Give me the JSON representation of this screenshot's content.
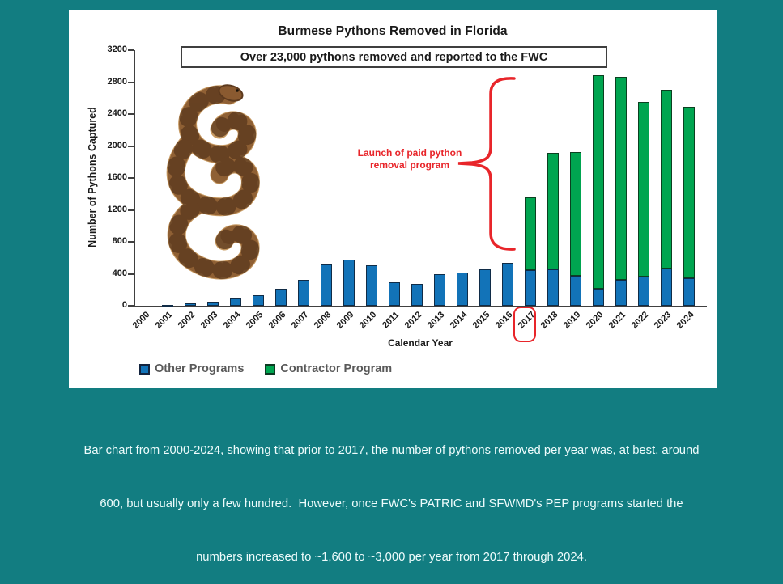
{
  "page": {
    "background_color": "#127d81"
  },
  "card": {
    "title": "Burmese Pythons Removed in Florida",
    "banner": "Over 23,000 pythons removed and reported to the FWC",
    "annotation": {
      "line1": "Launch of paid python",
      "line2": "removal program",
      "color": "#e8252a"
    },
    "highlighted_year": "2017"
  },
  "chart_data": {
    "type": "bar",
    "stacked": true,
    "title": "Burmese Pythons Removed in Florida",
    "xlabel": "Calendar Year",
    "ylabel": "Number of Pythons Captured",
    "ylim": [
      0,
      3200
    ],
    "yticks": [
      0,
      400,
      800,
      1200,
      1600,
      2000,
      2400,
      2800,
      3200
    ],
    "grid": false,
    "legend_position": "bottom",
    "categories": [
      "2000",
      "2001",
      "2002",
      "2003",
      "2004",
      "2005",
      "2006",
      "2007",
      "2008",
      "2009",
      "2010",
      "2011",
      "2012",
      "2013",
      "2014",
      "2015",
      "2016",
      "2017",
      "2018",
      "2019",
      "2020",
      "2021",
      "2022",
      "2023",
      "2024"
    ],
    "series": [
      {
        "name": "Other Programs",
        "color": "#1273b8",
        "values": [
          5,
          10,
          30,
          50,
          90,
          130,
          215,
          320,
          520,
          580,
          510,
          295,
          275,
          390,
          420,
          455,
          540,
          450,
          460,
          375,
          215,
          325,
          365,
          470,
          340
        ]
      },
      {
        "name": "Contractor Program",
        "color": "#00a550",
        "values": [
          0,
          0,
          0,
          0,
          0,
          0,
          0,
          0,
          0,
          0,
          0,
          0,
          0,
          0,
          0,
          0,
          0,
          910,
          1460,
          1545,
          2675,
          2545,
          2185,
          2240,
          2150
        ]
      }
    ],
    "annotations": [
      "Over 23,000 pythons removed and reported to the FWC",
      "Launch of paid python removal program (brace over 2017-2024 bars)",
      "Red box highlighting year 2017 on x-axis"
    ]
  },
  "legend": {
    "items": [
      {
        "label": "Other Programs",
        "color": "#1273b8"
      },
      {
        "label": "Contractor Program",
        "color": "#00a550"
      }
    ]
  },
  "caption": {
    "lines": [
      "Bar chart from 2000-2024, showing that prior to 2017, the number of pythons removed per year was, at best, around",
      "600, but usually only a few hundred.  However, once FWC's PATRIC and SFWMD's PEP programs started the",
      "numbers increased to ~1,600 to ~3,000 per year from 2017 through 2024."
    ]
  }
}
